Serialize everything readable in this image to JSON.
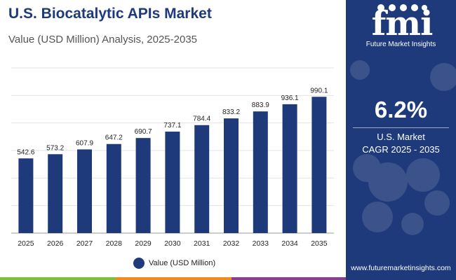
{
  "header": {
    "title": "U.S. Biocatalytic APIs Market",
    "subtitle": "Value (USD Million) Analysis, 2025-2035"
  },
  "brand": {
    "logo_text": "fmi",
    "logo_subtitle": "Future Market Insights",
    "website": "www.futuremarketinsights.com",
    "panel_color": "#1f3a7a",
    "bar_color": "#1f3a7a"
  },
  "cagr": {
    "value": "6.2%",
    "label_line1": "U.S. Market",
    "label_line2": "CAGR 2025 - 2035"
  },
  "legend": {
    "label": "Value (USD Million)"
  },
  "chart_data": {
    "type": "bar",
    "title": "U.S. Biocatalytic APIs Market",
    "subtitle": "Value (USD Million) Analysis, 2025-2035",
    "categories": [
      "2025",
      "2026",
      "2027",
      "2028",
      "2029",
      "2030",
      "2031",
      "2032",
      "2033",
      "2034",
      "2035"
    ],
    "series": [
      {
        "name": "Value (USD Million)",
        "values": [
          542.6,
          573.2,
          607.9,
          647.2,
          690.7,
          737.1,
          784.4,
          833.2,
          883.9,
          936.1,
          990.1
        ],
        "labels": [
          "542.6",
          "573.2",
          "607.9",
          "647.2",
          "690.7",
          "737.1",
          "784.4",
          "833.2",
          "883.9",
          "936.1",
          "990.1"
        ]
      }
    ],
    "ylim": [
      0,
      1200
    ],
    "grid": true,
    "legend_position": "bottom",
    "xlabel": "",
    "ylabel": ""
  }
}
